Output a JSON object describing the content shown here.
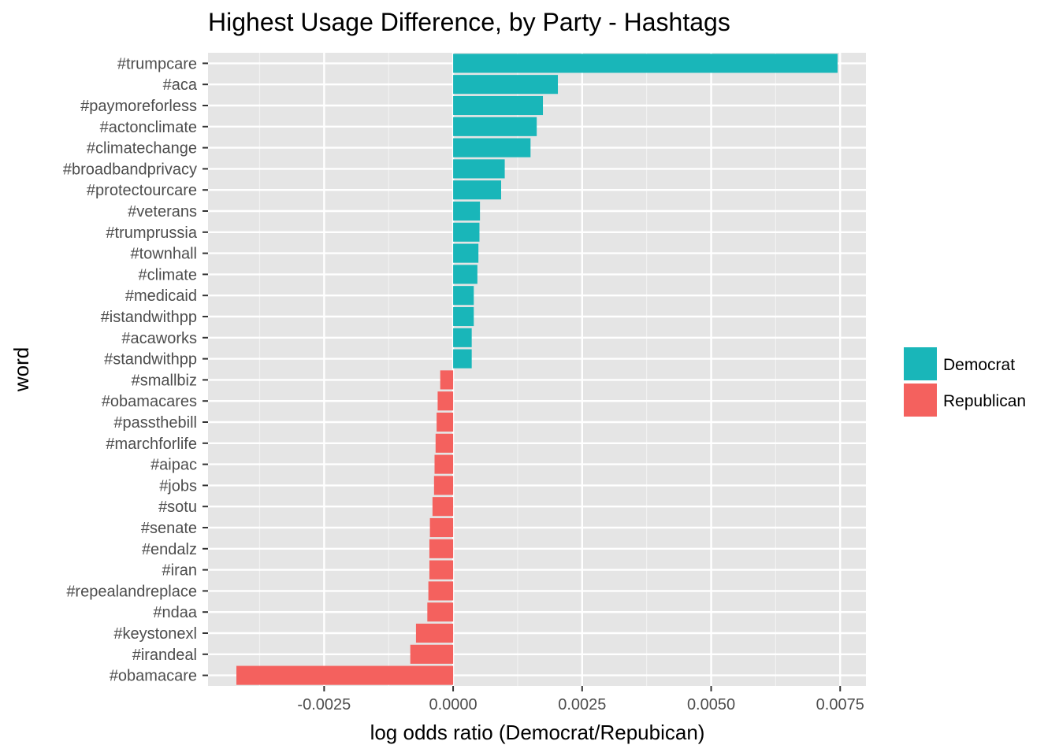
{
  "chart_data": {
    "type": "bar",
    "orientation": "horizontal",
    "title": "Highest Usage Difference, by Party - Hashtags",
    "xlabel": "log odds ratio (Democrat/Repubican)",
    "ylabel": "word",
    "xlim": [
      -0.00475,
      0.008
    ],
    "x_ticks": [
      -0.0025,
      0.0,
      0.0025,
      0.005,
      0.0075
    ],
    "x_tick_labels": [
      "-0.0025",
      "0.0000",
      "0.0025",
      "0.0050",
      "0.0075"
    ],
    "grid": true,
    "legend_position": "right",
    "legend": [
      {
        "name": "Democrat",
        "color": "#19b6b9"
      },
      {
        "name": "Republican",
        "color": "#f4615e"
      }
    ],
    "categories": [
      "#trumpcare",
      "#aca",
      "#paymoreforless",
      "#actonclimate",
      "#climatechange",
      "#broadbandprivacy",
      "#protectourcare",
      "#veterans",
      "#trumprussia",
      "#townhall",
      "#climate",
      "#medicaid",
      "#istandwithpp",
      "#acaworks",
      "#standwithpp",
      "#smallbiz",
      "#obamacares",
      "#passthebill",
      "#marchforlife",
      "#aipac",
      "#jobs",
      "#sotu",
      "#senate",
      "#endalz",
      "#iran",
      "#repealandreplace",
      "#ndaa",
      "#keystonexl",
      "#irandeal",
      "#obamacare"
    ],
    "values": [
      0.00745,
      0.00203,
      0.00174,
      0.00162,
      0.0015,
      0.001,
      0.00093,
      0.00052,
      0.00051,
      0.00049,
      0.00047,
      0.0004,
      0.0004,
      0.00036,
      0.00036,
      -0.00025,
      -0.0003,
      -0.00032,
      -0.00034,
      -0.00036,
      -0.00037,
      -0.0004,
      -0.00045,
      -0.00046,
      -0.00046,
      -0.00048,
      -0.0005,
      -0.00072,
      -0.00083,
      -0.0042
    ],
    "party": [
      "Democrat",
      "Democrat",
      "Democrat",
      "Democrat",
      "Democrat",
      "Democrat",
      "Democrat",
      "Democrat",
      "Democrat",
      "Democrat",
      "Democrat",
      "Democrat",
      "Democrat",
      "Democrat",
      "Democrat",
      "Republican",
      "Republican",
      "Republican",
      "Republican",
      "Republican",
      "Republican",
      "Republican",
      "Republican",
      "Republican",
      "Republican",
      "Republican",
      "Republican",
      "Republican",
      "Republican",
      "Republican"
    ],
    "colors": {
      "panel_background": "#e5e5e5",
      "grid_major": "#ffffff",
      "grid_minor": "#f2f2f2"
    }
  }
}
